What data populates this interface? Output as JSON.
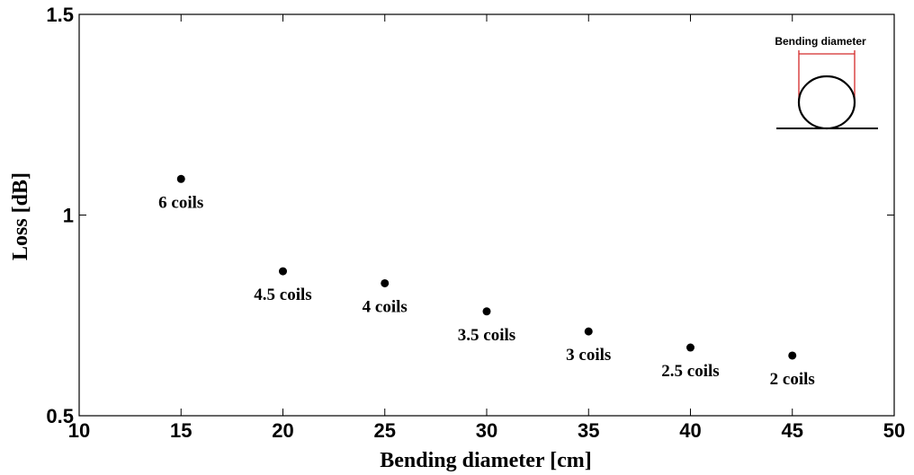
{
  "chart_data": {
    "type": "scatter",
    "title": "",
    "xlabel": "Bending diameter [cm]",
    "ylabel": "Loss [dB]",
    "xlim": [
      10,
      50
    ],
    "ylim": [
      0.5,
      1.5
    ],
    "x_ticks": [
      "10",
      "15",
      "20",
      "25",
      "30",
      "35",
      "40",
      "45",
      "50"
    ],
    "y_ticks": [
      "0.5",
      "1",
      "1.5"
    ],
    "grid": false,
    "points": [
      {
        "x": 15,
        "y": 1.09,
        "label": "6 coils"
      },
      {
        "x": 20,
        "y": 0.86,
        "label": "4.5 coils"
      },
      {
        "x": 25,
        "y": 0.83,
        "label": "4 coils"
      },
      {
        "x": 30,
        "y": 0.76,
        "label": "3.5 coils"
      },
      {
        "x": 35,
        "y": 0.71,
        "label": "3 coils"
      },
      {
        "x": 40,
        "y": 0.67,
        "label": "2.5 coils"
      },
      {
        "x": 45,
        "y": 0.65,
        "label": "2 coils"
      }
    ],
    "inset": {
      "label": "Bending diameter",
      "accent_color": "#d42a2a"
    }
  }
}
